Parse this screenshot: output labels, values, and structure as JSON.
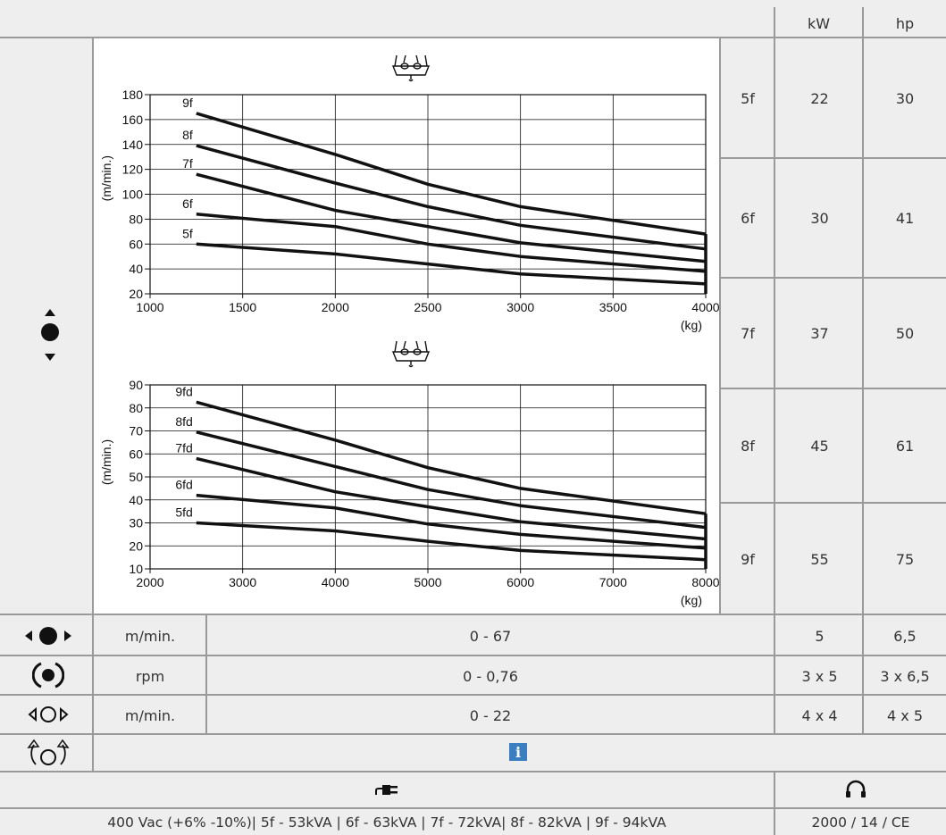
{
  "header": {
    "kw_label": "kW",
    "hp_label": "hp"
  },
  "models": [
    {
      "name": "5f",
      "kw": "22",
      "hp": "30"
    },
    {
      "name": "6f",
      "kw": "30",
      "hp": "41"
    },
    {
      "name": "7f",
      "kw": "37",
      "hp": "50"
    },
    {
      "name": "8f",
      "kw": "45",
      "hp": "61"
    },
    {
      "name": "9f",
      "kw": "55",
      "hp": "75"
    }
  ],
  "icons": {
    "hoist": "hoist-up-down-icon",
    "trolley": "trolley-travel-icon",
    "rotation": "rotation-icon",
    "travel": "crane-travel-icon",
    "rotate_limit": "rotation-limit-icon",
    "plug": "power-plug-icon",
    "noise": "headphones-icon",
    "info": "info-icon"
  },
  "rows": [
    {
      "unit": "m/min.",
      "value": "0 - 67",
      "kw": "5",
      "hp": "6,5"
    },
    {
      "unit": "rpm",
      "value": "0 - 0,76",
      "kw": "3 x 5",
      "hp": "3 x 6,5"
    },
    {
      "unit": "m/min.",
      "value": "0 - 22",
      "kw": "4 x 4",
      "hp": "4 x 5"
    }
  ],
  "info_label": "i",
  "footer": {
    "power": "400 Vac (+6% -10%)| 5f - 53kVA | 6f - 63kVA | 7f - 72kVA| 8f - 82kVA | 9f - 94kVA",
    "noise": "2000 / 14 / CE"
  },
  "colors": {
    "info_badge": "#3c7fc1",
    "cell_bg": "#eeeeee",
    "grid_line": "#9a9a9a"
  },
  "chart_data": [
    {
      "type": "line",
      "ylabel": "(m/min.)",
      "xunit": "(kg)",
      "xlim": [
        1000,
        4000
      ],
      "ylim": [
        20,
        180
      ],
      "xticks": [
        1000,
        1500,
        2000,
        2500,
        3000,
        3500,
        4000
      ],
      "yticks": [
        20,
        40,
        60,
        80,
        100,
        120,
        140,
        160,
        180
      ],
      "series": [
        {
          "name": "9f",
          "x": [
            1250,
            2000,
            2500,
            3000,
            4000
          ],
          "y": [
            165,
            132,
            108,
            90,
            68
          ]
        },
        {
          "name": "8f",
          "x": [
            1250,
            2000,
            2500,
            3000,
            4000
          ],
          "y": [
            139,
            109,
            90,
            75,
            56
          ]
        },
        {
          "name": "7f",
          "x": [
            1250,
            2000,
            2500,
            3000,
            4000
          ],
          "y": [
            116,
            87,
            74,
            61,
            46
          ]
        },
        {
          "name": "6f",
          "x": [
            1250,
            2000,
            2500,
            3000,
            4000
          ],
          "y": [
            84,
            74,
            60,
            50,
            38
          ]
        },
        {
          "name": "5f",
          "x": [
            1250,
            2000,
            2500,
            3000,
            4000
          ],
          "y": [
            60,
            52,
            44,
            36,
            28
          ]
        }
      ]
    },
    {
      "type": "line",
      "ylabel": "(m/min.)",
      "xunit": "(kg)",
      "xlim": [
        2000,
        8000
      ],
      "ylim": [
        10,
        90
      ],
      "xticks": [
        2000,
        3000,
        4000,
        5000,
        6000,
        7000,
        8000
      ],
      "yticks": [
        10,
        20,
        30,
        40,
        50,
        60,
        70,
        80,
        90
      ],
      "series": [
        {
          "name": "9fd",
          "x": [
            2500,
            4000,
            5000,
            6000,
            8000
          ],
          "y": [
            82.5,
            66,
            54,
            45,
            34
          ]
        },
        {
          "name": "8fd",
          "x": [
            2500,
            4000,
            5000,
            6000,
            8000
          ],
          "y": [
            69.5,
            54.5,
            44.5,
            37.5,
            28
          ]
        },
        {
          "name": "7fd",
          "x": [
            2500,
            4000,
            5000,
            6000,
            8000
          ],
          "y": [
            58,
            43.5,
            37,
            30.5,
            23
          ]
        },
        {
          "name": "6fd",
          "x": [
            2500,
            4000,
            5000,
            6000,
            8000
          ],
          "y": [
            42,
            36.5,
            29.5,
            25,
            19
          ]
        },
        {
          "name": "5fd",
          "x": [
            2500,
            4000,
            5000,
            6000,
            8000
          ],
          "y": [
            30,
            26.5,
            22,
            18,
            14
          ]
        }
      ]
    }
  ]
}
